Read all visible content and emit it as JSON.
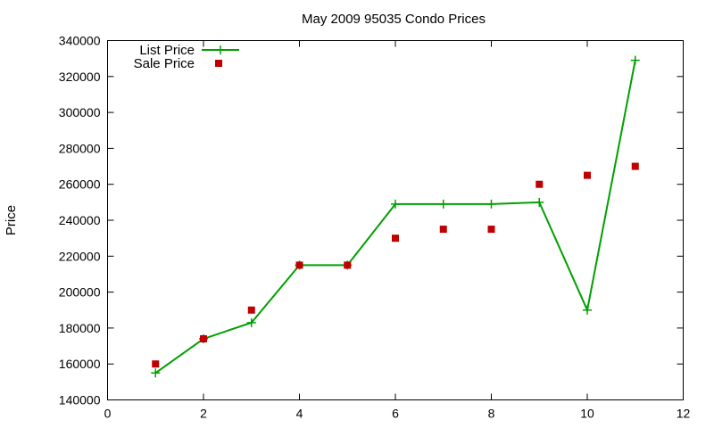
{
  "chart_data": {
    "type": "line",
    "title": "May 2009 95035 Condo Prices",
    "xlabel": "",
    "ylabel": "Price",
    "xlim": [
      0,
      12
    ],
    "ylim": [
      140000,
      340000
    ],
    "x_ticks": [
      0,
      2,
      4,
      6,
      8,
      10,
      12
    ],
    "y_ticks": [
      140000,
      160000,
      180000,
      200000,
      220000,
      240000,
      260000,
      280000,
      300000,
      320000,
      340000
    ],
    "grid": false,
    "legend_position": "top-left",
    "series": [
      {
        "name": "List Price",
        "style": "line+cross",
        "color": "#00a000",
        "x": [
          1,
          2,
          3,
          4,
          5,
          6,
          7,
          8,
          9,
          10,
          11
        ],
        "y": [
          155000,
          174000,
          183000,
          215000,
          215000,
          249000,
          249000,
          249000,
          250000,
          190000,
          329000
        ]
      },
      {
        "name": "Sale Price",
        "style": "square",
        "color": "#c00000",
        "x": [
          1,
          2,
          3,
          4,
          5,
          6,
          7,
          8,
          9,
          10,
          11
        ],
        "y": [
          160000,
          174000,
          190000,
          215000,
          215000,
          230000,
          235000,
          235000,
          260000,
          265000,
          270000
        ]
      }
    ]
  }
}
